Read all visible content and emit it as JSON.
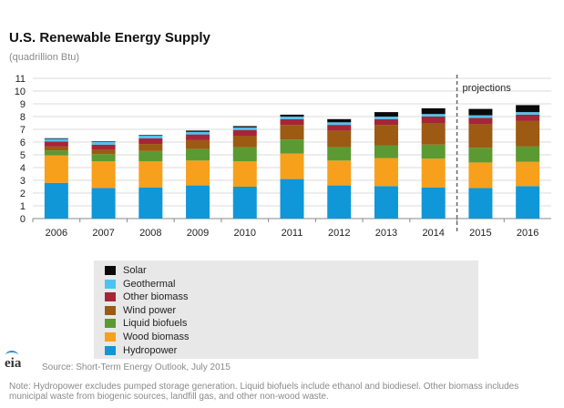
{
  "title": "U.S. Renewable Energy Supply",
  "subtitle": "(quadrillion Btu)",
  "projections_label": "projections",
  "logo_text": "eia",
  "source": "Source: Short-Term Energy Outlook, July 2015",
  "note": "Note: Hydropower excludes pumped storage generation. Liquid biofuels include ethanol and biodiesel. Other biomass includes municipal waste from biogenic sources, landfill gas, and other non-wood waste.",
  "chart_data": {
    "type": "bar",
    "stacked": true,
    "title": "U.S. Renewable Energy Supply",
    "ylabel": "(quadrillion Btu)",
    "ylim": [
      0,
      11
    ],
    "yticks": [
      0,
      1,
      2,
      3,
      4,
      5,
      6,
      7,
      8,
      9,
      10,
      11
    ],
    "grid": true,
    "categories": [
      "2006",
      "2007",
      "2008",
      "2009",
      "2010",
      "2011",
      "2012",
      "2013",
      "2014",
      "2015",
      "2016"
    ],
    "projection_start": "2015",
    "series": [
      {
        "name": "Hydropower",
        "color": "#0f97d8",
        "values": [
          2.8,
          2.4,
          2.45,
          2.6,
          2.5,
          3.1,
          2.6,
          2.55,
          2.45,
          2.4,
          2.55
        ]
      },
      {
        "name": "Wood biomass",
        "color": "#f7a01c",
        "values": [
          2.15,
          2.1,
          2.05,
          1.95,
          2.0,
          2.0,
          1.95,
          2.2,
          2.25,
          2.0,
          1.9
        ]
      },
      {
        "name": "Liquid biofuels",
        "color": "#5b9a32",
        "values": [
          0.4,
          0.55,
          0.8,
          0.9,
          1.1,
          1.1,
          1.05,
          1.0,
          1.1,
          1.15,
          1.2
        ]
      },
      {
        "name": "Wind power",
        "color": "#9c5a12",
        "values": [
          0.3,
          0.35,
          0.55,
          0.7,
          0.9,
          1.15,
          1.3,
          1.6,
          1.7,
          1.85,
          2.0
        ]
      },
      {
        "name": "Other biomass",
        "color": "#a62538",
        "values": [
          0.4,
          0.4,
          0.45,
          0.45,
          0.45,
          0.45,
          0.45,
          0.45,
          0.5,
          0.5,
          0.5
        ]
      },
      {
        "name": "Geothermal",
        "color": "#4dc3f1",
        "values": [
          0.2,
          0.2,
          0.2,
          0.2,
          0.2,
          0.2,
          0.2,
          0.2,
          0.2,
          0.2,
          0.2
        ]
      },
      {
        "name": "Solar",
        "color": "#0a0a0a",
        "values": [
          0.05,
          0.05,
          0.05,
          0.1,
          0.1,
          0.15,
          0.25,
          0.35,
          0.45,
          0.5,
          0.55
        ]
      }
    ],
    "legend": [
      "Solar",
      "Geothermal",
      "Other biomass",
      "Wind power",
      "Liquid biofuels",
      "Wood biomass",
      "Hydropower"
    ]
  }
}
